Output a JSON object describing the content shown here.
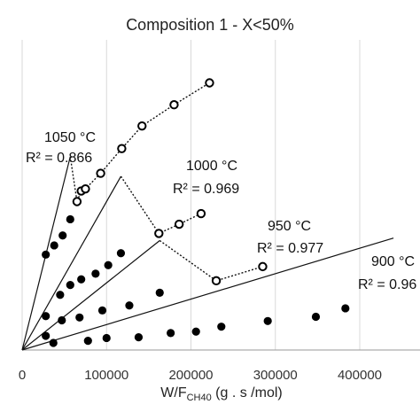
{
  "chart_data": {
    "type": "scatter",
    "title": "Composition 1 - X<50%",
    "xlabel": {
      "main": "W/F",
      "sub": "CH40",
      "rest": " (g . s /mol)"
    },
    "ylabel": "",
    "xlim": [
      0,
      440000
    ],
    "ylim": [
      0,
      0.42
    ],
    "x_ticks": [
      0,
      100000,
      200000,
      300000,
      400000
    ],
    "x_tick_labels": [
      "0",
      "100000",
      "200000",
      "300000",
      "400000"
    ],
    "grid": {
      "vertical": true,
      "horizontal": false
    },
    "series": [
      {
        "temperature": "1050 °C",
        "r2": "R² = 0.866",
        "trend_slope": 4.8e-06,
        "filled": [
          [
            28000,
            0.135
          ],
          [
            38000,
            0.148
          ],
          [
            48000,
            0.162
          ],
          [
            57000,
            0.185
          ]
        ],
        "open": [
          [
            70000,
            0.225
          ],
          [
            65000,
            0.21
          ],
          [
            75000,
            0.228
          ],
          [
            93000,
            0.25
          ],
          [
            118000,
            0.285
          ],
          [
            142000,
            0.317
          ],
          [
            180000,
            0.347
          ],
          [
            222000,
            0.378
          ]
        ]
      },
      {
        "temperature": "1000 °C",
        "r2": "R² = 0.969",
        "trend_slope": 2.1e-06,
        "filled": [
          [
            28000,
            0.048
          ],
          [
            45000,
            0.078
          ],
          [
            57000,
            0.092
          ],
          [
            70000,
            0.1
          ],
          [
            87000,
            0.108
          ],
          [
            102000,
            0.12
          ],
          [
            117000,
            0.137
          ]
        ],
        "open": [
          [
            162000,
            0.165
          ],
          [
            186000,
            0.178
          ],
          [
            212000,
            0.193
          ]
        ]
      },
      {
        "temperature": "950 °C",
        "r2": "R² = 0.977",
        "trend_slope": 9.5e-07,
        "filled": [
          [
            28000,
            0.02
          ],
          [
            47000,
            0.042
          ],
          [
            68000,
            0.046
          ],
          [
            95000,
            0.056
          ],
          [
            127000,
            0.063
          ],
          [
            163000,
            0.081
          ]
        ],
        "open": [
          [
            230000,
            0.098
          ],
          [
            285000,
            0.118
          ]
        ]
      },
      {
        "temperature": "900 °C",
        "r2": "R² = 0.96",
        "trend_slope": 3.6e-07,
        "filled": [
          [
            37000,
            0.01
          ],
          [
            78000,
            0.013
          ],
          [
            100000,
            0.017
          ],
          [
            138000,
            0.018
          ],
          [
            176000,
            0.024
          ],
          [
            206000,
            0.026
          ],
          [
            236000,
            0.033
          ],
          [
            291000,
            0.041
          ],
          [
            348000,
            0.047
          ],
          [
            383000,
            0.059
          ]
        ],
        "open": []
      }
    ]
  }
}
